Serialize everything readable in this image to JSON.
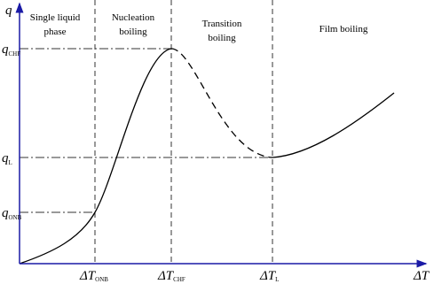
{
  "regions": [
    {
      "lines": [
        "Single liquid",
        "phase"
      ]
    },
    {
      "lines": [
        "Nucleation",
        "boiling"
      ]
    },
    {
      "lines": [
        "Transition",
        "boiling"
      ]
    },
    {
      "lines": [
        "Film boiling"
      ]
    }
  ],
  "y_axis": {
    "label": "q",
    "ticks": [
      {
        "main": "q",
        "sub": "CHF"
      },
      {
        "main": "q",
        "sub": "L"
      },
      {
        "main": "q",
        "sub": "ONB"
      }
    ]
  },
  "x_axis": {
    "label": "ΔT",
    "ticks": [
      {
        "main": "ΔT",
        "sub": "ONB"
      },
      {
        "main": "ΔT",
        "sub": "CHF"
      },
      {
        "main": "ΔT",
        "sub": "L"
      }
    ]
  }
}
